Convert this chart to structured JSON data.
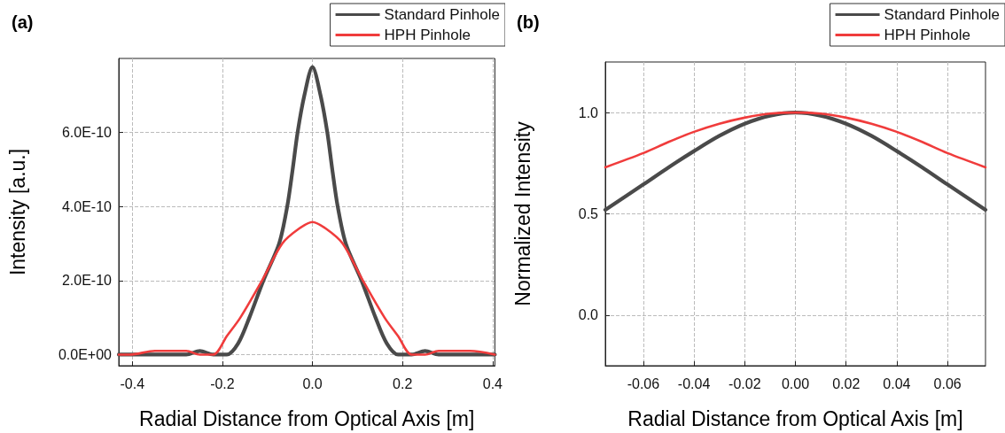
{
  "chart_data": [
    {
      "type": "line",
      "title": "(a)",
      "xlabel": "Radial Distance from Optical Axis [m]",
      "ylabel": "Intensity [a.u.]",
      "xlim": [
        -0.43,
        0.405
      ],
      "xticks": [
        {
          "value": -0.4,
          "label": "-0.4"
        },
        {
          "value": -0.2,
          "label": "-0.2"
        },
        {
          "value": 0,
          "label": "0.0"
        },
        {
          "value": 0.2,
          "label": "0.2"
        },
        {
          "value": 0.4,
          "label": "0.4"
        }
      ],
      "ylim": [
        -3e-11,
        8e-10
      ],
      "yticks": [
        {
          "value": 0,
          "label": "0.0E+00"
        },
        {
          "value": 2e-10,
          "label": "2.0E-10"
        },
        {
          "value": 4e-10,
          "label": "4.0E-10"
        },
        {
          "value": 6e-10,
          "label": "6.0E-10"
        }
      ],
      "grid": true,
      "legend": "top right",
      "marker": "none",
      "line_style": "solid",
      "series": [
        {
          "name": "Standard Pinhole",
          "color": "#4a4a4a",
          "x": [
            -0.43,
            -0.405,
            -0.35,
            -0.31,
            -0.28,
            -0.25,
            -0.22,
            -0.19,
            -0.165,
            -0.14,
            -0.109,
            -0.074,
            -0.056,
            -0.044,
            -0.033,
            -0.018,
            0,
            0.018,
            0.033,
            0.044,
            0.056,
            0.074,
            0.109,
            0.14,
            0.165,
            0.19,
            0.22,
            0.25,
            0.28,
            0.31,
            0.35,
            0.405
          ],
          "values": [
            0,
            0,
            0,
            0,
            0,
            1e-11,
            0,
            0,
            3e-11,
            1e-10,
            2e-10,
            3e-10,
            4e-10,
            5e-10,
            6e-10,
            7e-10,
            7.77e-10,
            7e-10,
            6e-10,
            5e-10,
            4e-10,
            3e-10,
            2e-10,
            1e-10,
            3e-11,
            0,
            0,
            1e-11,
            0,
            0,
            0,
            0
          ]
        },
        {
          "name": "HPH Pinhole",
          "color": "#f03c3c",
          "x": [
            -0.43,
            -0.405,
            -0.35,
            -0.31,
            -0.28,
            -0.25,
            -0.22,
            -0.19,
            -0.16,
            -0.112,
            -0.067,
            -0.03,
            0,
            0.03,
            0.067,
            0.112,
            0.16,
            0.19,
            0.22,
            0.25,
            0.28,
            0.31,
            0.35,
            0.405
          ],
          "values": [
            0,
            0,
            1e-11,
            1e-11,
            1e-11,
            0,
            0,
            5e-11,
            1e-10,
            2e-10,
            3e-10,
            3.4e-10,
            3.58e-10,
            3.4e-10,
            3e-10,
            2e-10,
            1e-10,
            5e-11,
            0,
            0,
            1e-11,
            1e-11,
            1e-11,
            0
          ]
        }
      ]
    },
    {
      "type": "line",
      "title": "(b)",
      "xlabel": "Radial Distance from Optical Axis [m]",
      "ylabel": "Normalized Intensity",
      "xlim": [
        -0.075,
        0.075
      ],
      "xticks": [
        {
          "value": -0.06,
          "label": "-0.06"
        },
        {
          "value": -0.04,
          "label": "-0.04"
        },
        {
          "value": -0.02,
          "label": "-0.02"
        },
        {
          "value": 0,
          "label": "0.00"
        },
        {
          "value": 0.02,
          "label": "0.02"
        },
        {
          "value": 0.04,
          "label": "0.04"
        },
        {
          "value": 0.06,
          "label": "0.06"
        }
      ],
      "ylim": [
        -0.25,
        1.25
      ],
      "yticks": [
        {
          "value": 0,
          "label": "0.0"
        },
        {
          "value": 0.5,
          "label": "0.5"
        },
        {
          "value": 1,
          "label": "1.0"
        }
      ],
      "grid": true,
      "legend": "top right",
      "marker": "none",
      "line_style": "solid",
      "series": [
        {
          "name": "Standard Pinhole",
          "color": "#4a4a4a",
          "x": [
            -0.075,
            -0.06,
            -0.05,
            -0.04,
            -0.03,
            -0.02,
            -0.01,
            0,
            0.01,
            0.02,
            0.03,
            0.04,
            0.05,
            0.06,
            0.075
          ],
          "values": [
            0.52,
            0.645,
            0.73,
            0.81,
            0.885,
            0.945,
            0.985,
            1.0,
            0.985,
            0.945,
            0.885,
            0.81,
            0.73,
            0.645,
            0.52
          ]
        },
        {
          "name": "HPH Pinhole",
          "color": "#f03c3c",
          "x": [
            -0.075,
            -0.06,
            -0.05,
            -0.04,
            -0.03,
            -0.02,
            -0.01,
            0,
            0.01,
            0.02,
            0.03,
            0.04,
            0.05,
            0.06,
            0.075
          ],
          "values": [
            0.73,
            0.8,
            0.855,
            0.905,
            0.945,
            0.975,
            0.995,
            1.0,
            0.995,
            0.975,
            0.945,
            0.905,
            0.855,
            0.8,
            0.73
          ]
        }
      ]
    }
  ]
}
